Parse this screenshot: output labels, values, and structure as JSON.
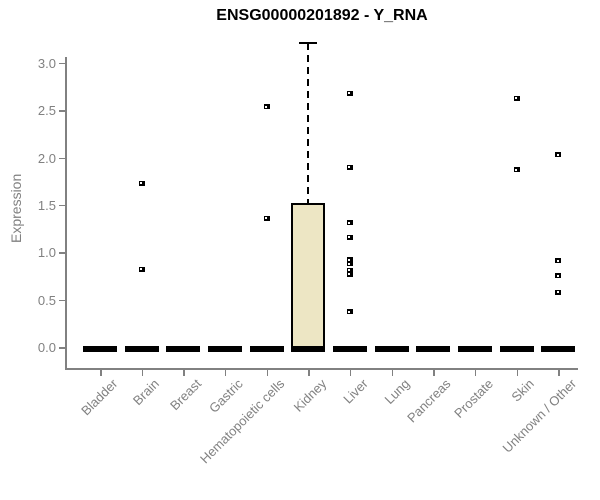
{
  "title": "ENSG00000201892 - Y_RNA",
  "y_axis": {
    "label": "Expression",
    "tick_values": [
      0,
      0.5,
      1,
      1.5,
      2,
      2.5,
      3
    ],
    "tick_labels": [
      "0.0",
      "0.5",
      "1.0",
      "1.5",
      "2.0",
      "2.5",
      "3.0"
    ]
  },
  "chart_data": {
    "type": "boxplot",
    "title": "ENSG00000201892 - Y_RNA",
    "xlabel": "",
    "ylabel": "Expression",
    "ylim": [
      0,
      3.2
    ],
    "yticks": [
      0,
      0.5,
      1,
      1.5,
      2,
      2.5,
      3
    ],
    "grid": false,
    "legend": "none",
    "categories": [
      "Bladder",
      "Brain",
      "Breast",
      "Gastric",
      "Hematopoietic cells",
      "Kidney",
      "Liver",
      "Lung",
      "Pancreas",
      "Prostate",
      "Skin",
      "Unknown / Other"
    ],
    "boxes": [
      {
        "category": "Bladder",
        "whisker_low": 0,
        "q1": 0,
        "median": 0,
        "q3": 0,
        "whisker_high": 0,
        "outliers": []
      },
      {
        "category": "Brain",
        "whisker_low": 0,
        "q1": 0,
        "median": 0,
        "q3": 0,
        "whisker_high": 0,
        "outliers": [
          1.73,
          0.82
        ]
      },
      {
        "category": "Breast",
        "whisker_low": 0,
        "q1": 0,
        "median": 0,
        "q3": 0,
        "whisker_high": 0,
        "outliers": []
      },
      {
        "category": "Gastric",
        "whisker_low": 0,
        "q1": 0,
        "median": 0,
        "q3": 0,
        "whisker_high": 0,
        "outliers": []
      },
      {
        "category": "Hematopoietic cells",
        "whisker_low": 0,
        "q1": 0,
        "median": 0,
        "q3": 0,
        "whisker_high": 0,
        "outliers": [
          2.54,
          1.36
        ]
      },
      {
        "category": "Kidney",
        "whisker_low": 0,
        "q1": 0,
        "median": 0,
        "q3": 1.52,
        "whisker_high": 3.21,
        "outliers": []
      },
      {
        "category": "Liver",
        "whisker_low": 0,
        "q1": 0,
        "median": 0,
        "q3": 0,
        "whisker_high": 0,
        "outliers": [
          2.68,
          1.9,
          1.31,
          1.16,
          0.92,
          0.88,
          0.81,
          0.77,
          0.37
        ]
      },
      {
        "category": "Lung",
        "whisker_low": 0,
        "q1": 0,
        "median": 0,
        "q3": 0,
        "whisker_high": 0,
        "outliers": []
      },
      {
        "category": "Pancreas",
        "whisker_low": 0,
        "q1": 0,
        "median": 0,
        "q3": 0,
        "whisker_high": 0,
        "outliers": []
      },
      {
        "category": "Prostate",
        "whisker_low": 0,
        "q1": 0,
        "median": 0,
        "q3": 0,
        "whisker_high": 0,
        "outliers": []
      },
      {
        "category": "Skin",
        "whisker_low": 0,
        "q1": 0,
        "median": 0,
        "q3": 0,
        "whisker_high": 0,
        "outliers": [
          2.63,
          1.87
        ]
      },
      {
        "category": "Unknown / Other",
        "whisker_low": 0,
        "q1": 0,
        "median": 0,
        "q3": 0,
        "whisker_high": 0,
        "outliers": [
          2.03,
          0.91,
          0.75,
          0.58
        ]
      }
    ]
  },
  "colors": {
    "box_fill": "#ede6c4",
    "box_border": "#000000",
    "median_bar": "#000000",
    "outlier": "#000000",
    "axis": "#818181",
    "tick_text": "#818181",
    "title_text": "#000000",
    "background": "#ffffff"
  }
}
